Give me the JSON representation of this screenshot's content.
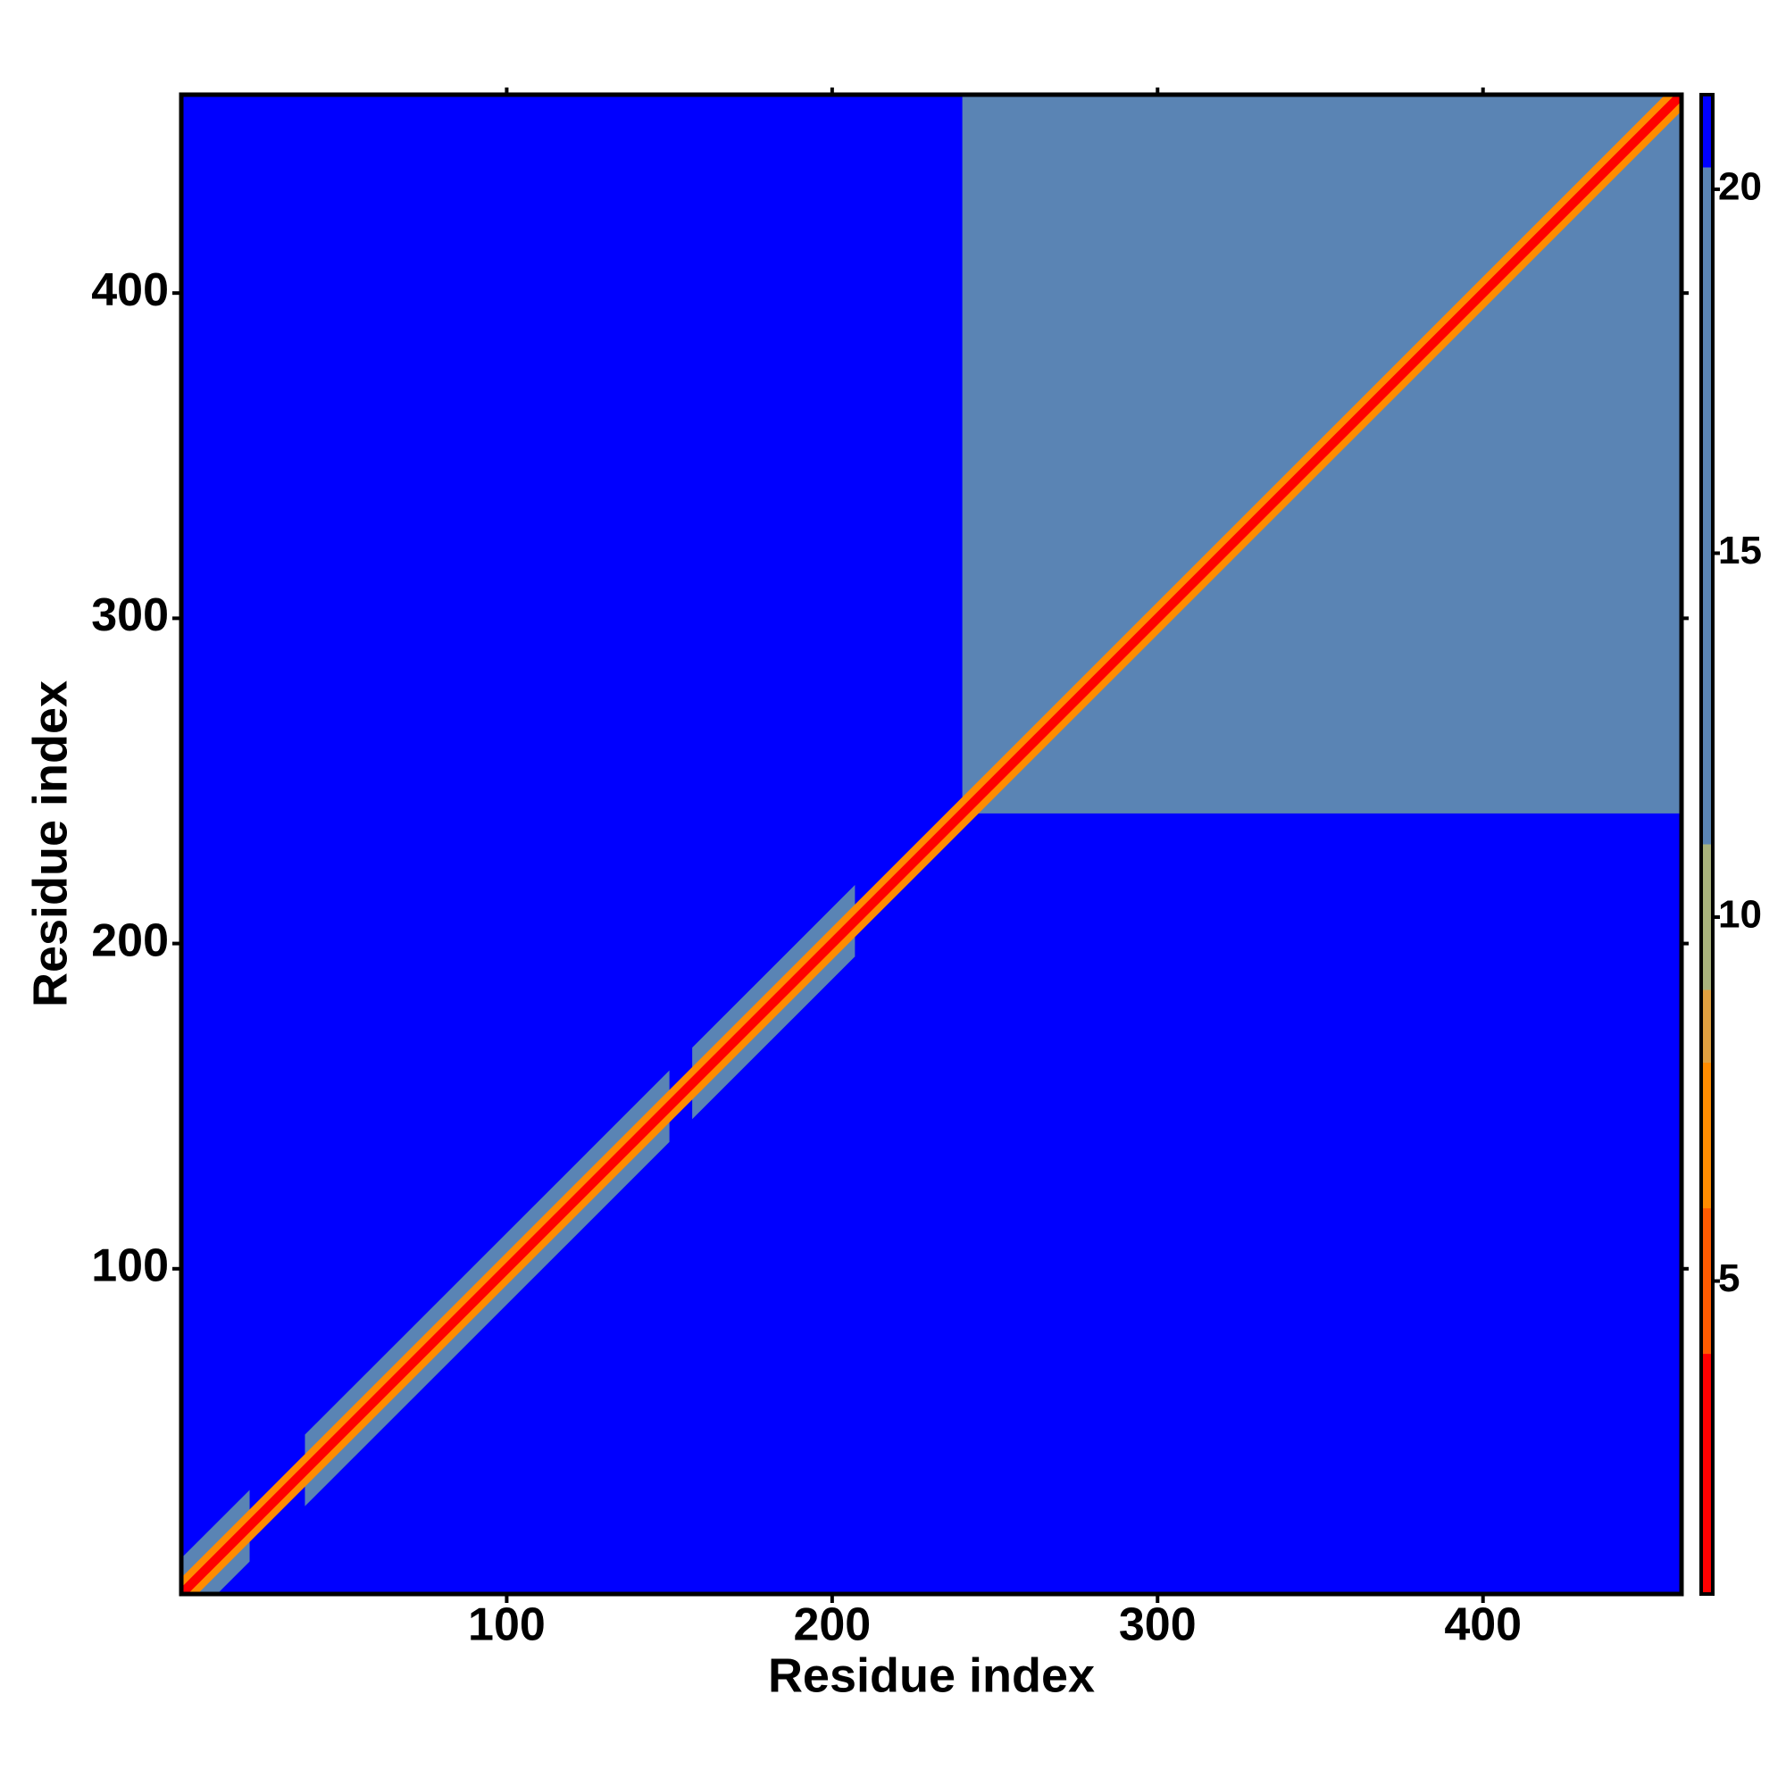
{
  "chart_data": {
    "type": "heatmap",
    "x_label": "Residue index",
    "y_label": "Residue index",
    "xlim": [
      0,
      461
    ],
    "ylim": [
      0,
      461
    ],
    "xticks": [
      100,
      200,
      300,
      400
    ],
    "yticks": [
      100,
      200,
      300,
      400
    ],
    "clim": [
      0.7,
      21.3
    ],
    "cticks": [
      5,
      10,
      15,
      20
    ],
    "colorscale": [
      [
        0.7,
        "#ff0000"
      ],
      [
        4,
        "#ff5a00"
      ],
      [
        6,
        "#ff8c00"
      ],
      [
        8,
        "#e0a040"
      ],
      [
        9,
        "#a8b27c"
      ],
      [
        11,
        "#5a84b4"
      ],
      [
        20.3,
        "#0000ff"
      ]
    ],
    "regions": [
      {
        "x": [
          0,
          461
        ],
        "y": [
          0,
          461
        ],
        "value": 21
      },
      {
        "x": [
          240,
          461
        ],
        "y": [
          240,
          461
        ],
        "value": 17
      }
    ],
    "bands": [
      {
        "range": [
          0,
          21
        ],
        "width": 11,
        "value": 12
      },
      {
        "range": [
          38,
          150
        ],
        "width": 11,
        "value": 12
      },
      {
        "range": [
          157,
          207
        ],
        "width": 11,
        "value": 12
      },
      {
        "range": [
          0,
          461
        ],
        "width": 5,
        "value": 7
      },
      {
        "range": [
          0,
          461
        ],
        "width": 2,
        "value": 2
      }
    ]
  }
}
